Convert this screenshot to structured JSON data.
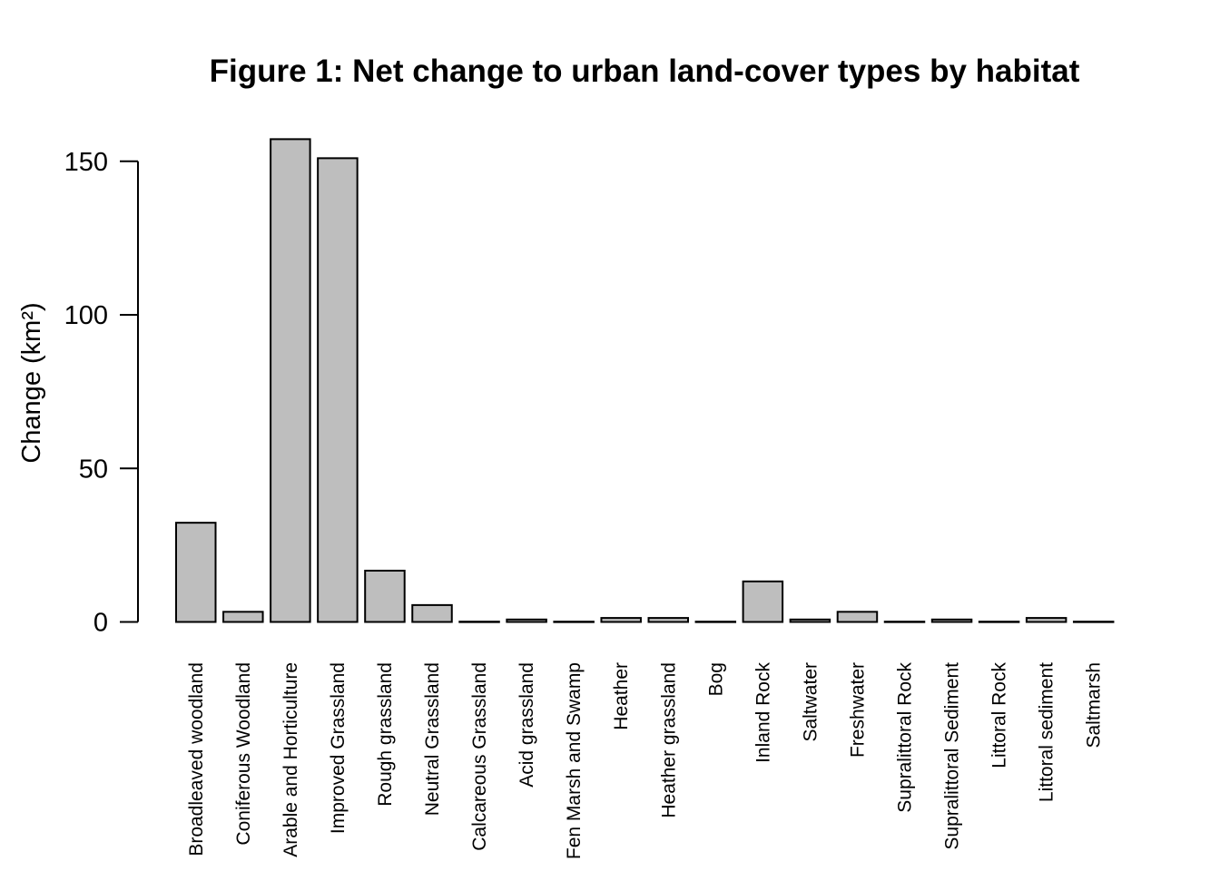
{
  "chart_data": {
    "type": "bar",
    "title": "Figure 1: Net change to urban land-cover types by habitat",
    "xlabel": "",
    "ylabel": "Change (km²)",
    "ylim": [
      0,
      160
    ],
    "yticks": [
      0,
      50,
      100,
      150
    ],
    "grid": false,
    "legend": "none",
    "bar_color": "#bebebe",
    "categories": [
      "Broadleaved woodland",
      "Coniferous Woodland",
      "Arable and Horticulture",
      "Improved Grassland",
      "Rough grassland",
      "Neutral Grassland",
      "Calcareous Grassland",
      "Acid grassland",
      "Fen Marsh and Swamp",
      "Heather",
      "Heather grassland",
      "Bog",
      "Inland Rock",
      "Saltwater",
      "Freshwater",
      "Supralittoral Rock",
      "Supralittoral Sediment",
      "Littoral Rock",
      "Littoral sediment",
      "Saltmarsh"
    ],
    "values": [
      32.3,
      3.3,
      157.2,
      151.0,
      16.7,
      5.5,
      0.1,
      0.8,
      0.1,
      1.3,
      1.3,
      0.1,
      13.2,
      0.8,
      3.3,
      0.1,
      0.8,
      0.1,
      1.3,
      0.1
    ]
  }
}
